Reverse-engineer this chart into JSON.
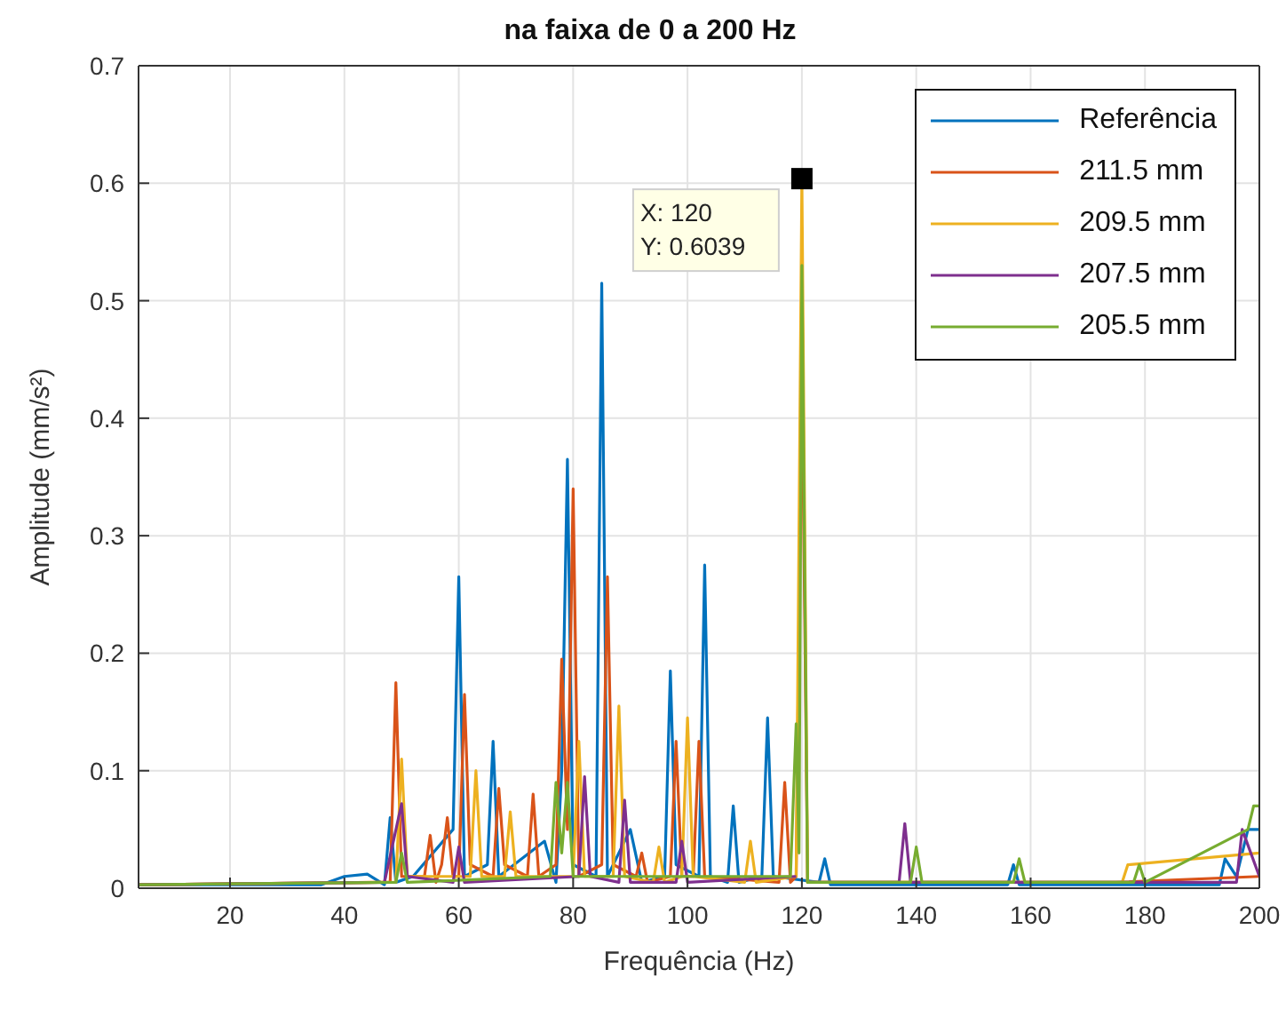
{
  "chart_data": {
    "type": "line",
    "title": "na faixa de 0 a 200 Hz",
    "xlabel": "Frequência (Hz)",
    "ylabel": "Amplitude (mm/s²)",
    "xlim": [
      4,
      200
    ],
    "xticks": [
      20,
      40,
      60,
      80,
      100,
      120,
      140,
      160,
      180,
      200
    ],
    "ylim": [
      0,
      0.7
    ],
    "yticks": [
      0,
      0.1,
      0.2,
      0.3,
      0.4,
      0.5,
      0.6,
      0.7
    ],
    "grid": true,
    "legend": "top right",
    "marker": "none",
    "line_style": "solid",
    "annotations": [
      {
        "text": "X: 120\nY: 0.6039",
        "x": 120,
        "y": 0.6039
      }
    ],
    "series": [
      {
        "name": "Referência",
        "color": "#0072bd",
        "x": [
          4,
          36,
          40,
          44,
          47,
          48,
          49,
          52,
          59,
          60,
          61,
          65,
          66,
          67,
          75,
          77,
          78,
          79,
          80,
          84,
          85,
          86,
          90,
          92,
          96,
          97,
          98,
          102,
          103,
          104,
          107,
          108,
          109,
          113,
          114,
          115,
          123,
          124,
          125,
          156,
          157,
          158,
          193,
          194,
          196,
          198,
          200
        ],
        "values": [
          0.003,
          0.003,
          0.01,
          0.012,
          0.003,
          0.06,
          0.005,
          0.01,
          0.05,
          0.265,
          0.01,
          0.02,
          0.125,
          0.01,
          0.04,
          0.005,
          0.1,
          0.365,
          0.02,
          0.01,
          0.515,
          0.01,
          0.05,
          0.005,
          0.01,
          0.185,
          0.02,
          0.01,
          0.275,
          0.01,
          0.005,
          0.07,
          0.005,
          0.01,
          0.145,
          0.01,
          0.005,
          0.025,
          0.003,
          0.003,
          0.02,
          0.003,
          0.003,
          0.025,
          0.01,
          0.05,
          0.05
        ]
      },
      {
        "name": "211.5 mm",
        "color": "#d95319",
        "x": [
          4,
          46,
          48,
          49,
          50,
          54,
          55,
          56,
          57,
          58,
          59,
          60,
          61,
          62,
          66,
          67,
          68,
          72,
          73,
          74,
          77,
          78,
          79,
          80,
          81,
          85,
          86,
          87,
          91,
          92,
          93,
          97,
          98,
          99,
          101,
          102,
          103,
          116,
          117,
          118,
          119,
          120,
          121,
          140,
          175,
          200
        ],
        "values": [
          0.003,
          0.005,
          0.005,
          0.175,
          0.01,
          0.01,
          0.045,
          0.005,
          0.02,
          0.06,
          0.01,
          0.01,
          0.165,
          0.02,
          0.01,
          0.085,
          0.02,
          0.01,
          0.08,
          0.01,
          0.02,
          0.195,
          0.05,
          0.34,
          0.01,
          0.02,
          0.265,
          0.02,
          0.01,
          0.03,
          0.005,
          0.01,
          0.125,
          0.01,
          0.01,
          0.125,
          0.01,
          0.005,
          0.09,
          0.005,
          0.01,
          0.45,
          0.005,
          0.005,
          0.005,
          0.01
        ]
      },
      {
        "name": "209.5 mm",
        "color": "#edb120",
        "x": [
          4,
          46,
          49,
          50,
          51,
          62,
          63,
          64,
          68,
          69,
          70,
          80,
          81,
          82,
          87,
          88,
          89,
          94,
          95,
          96,
          99,
          100,
          101,
          110,
          111,
          112,
          119,
          120,
          121,
          176,
          177,
          200
        ],
        "values": [
          0.003,
          0.005,
          0.005,
          0.11,
          0.01,
          0.01,
          0.1,
          0.01,
          0.01,
          0.065,
          0.01,
          0.01,
          0.125,
          0.01,
          0.01,
          0.155,
          0.01,
          0.005,
          0.035,
          0.005,
          0.01,
          0.145,
          0.01,
          0.005,
          0.04,
          0.005,
          0.01,
          0.6039,
          0.005,
          0.005,
          0.02,
          0.03
        ]
      },
      {
        "name": "207.5 mm",
        "color": "#7e2f8e",
        "x": [
          4,
          47,
          50,
          51,
          59,
          60,
          61,
          81,
          82,
          83,
          88,
          89,
          90,
          98,
          99,
          100,
          119,
          120,
          121,
          137,
          138,
          139,
          196,
          197,
          200
        ],
        "values": [
          0.003,
          0.005,
          0.072,
          0.01,
          0.005,
          0.035,
          0.005,
          0.01,
          0.095,
          0.01,
          0.005,
          0.075,
          0.005,
          0.005,
          0.04,
          0.005,
          0.01,
          null,
          0.005,
          0.005,
          0.055,
          0.005,
          0.005,
          0.05,
          0.01
        ]
      },
      {
        "name": "205.5 mm",
        "color": "#77ac30",
        "x": [
          4,
          49,
          50,
          51,
          76,
          77,
          78,
          79,
          80,
          118,
          119,
          119.5,
          120,
          121,
          139,
          140,
          141,
          157,
          158,
          159,
          178,
          179,
          180,
          198,
          199,
          200
        ],
        "values": [
          0.003,
          0.005,
          0.03,
          0.005,
          0.01,
          0.09,
          0.03,
          0.09,
          0.01,
          0.01,
          0.14,
          0.03,
          0.53,
          0.005,
          0.005,
          0.035,
          0.005,
          0.005,
          0.025,
          0.005,
          0.005,
          0.02,
          0.005,
          0.05,
          0.07,
          0.07
        ]
      }
    ]
  }
}
